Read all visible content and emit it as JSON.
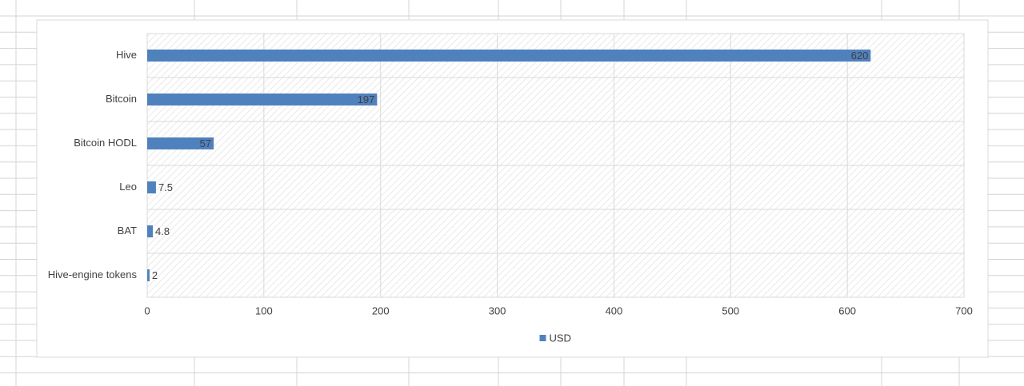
{
  "chart_data": {
    "type": "bar",
    "orientation": "horizontal",
    "categories": [
      "Hive",
      "Bitcoin",
      "Bitcoin HODL",
      "Leo",
      "BAT",
      "Hive-engine tokens"
    ],
    "series": [
      {
        "name": "USD",
        "color": "#4f81bd",
        "values": [
          620,
          197,
          57,
          7.5,
          4.8,
          2
        ]
      }
    ],
    "xlim": [
      0,
      700
    ],
    "xticks": [
      0,
      100,
      200,
      300,
      400,
      500,
      600,
      700
    ],
    "grid": true,
    "legend": "bottom"
  }
}
